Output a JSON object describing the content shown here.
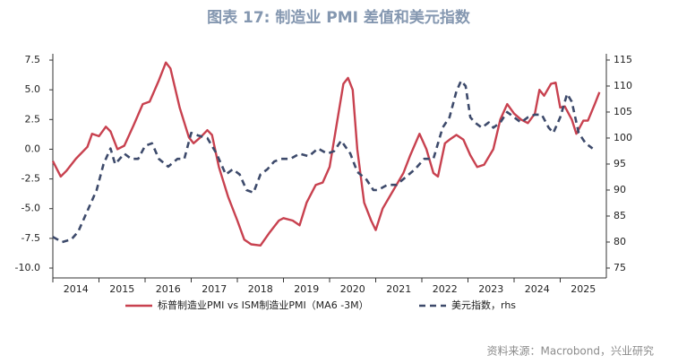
{
  "chart_data": {
    "type": "line",
    "title": "图表 17: 制造业 PMI 差值和美元指数",
    "source": "资料来源：Macrobond，兴业研究",
    "xlim": [
      2014,
      2026
    ],
    "xticks": [
      2014,
      2015,
      2016,
      2017,
      2018,
      2019,
      2020,
      2021,
      2022,
      2023,
      2024,
      2025
    ],
    "ylim": [
      -10.83,
      8.03
    ],
    "yticks": [
      {
        "value": 7.5,
        "label": "7.5"
      },
      {
        "value": 5,
        "label": "5.0"
      },
      {
        "value": 2.5,
        "label": "2.5"
      },
      {
        "value": 0,
        "label": "0.0"
      },
      {
        "value": -2.5,
        "label": "-2.5"
      },
      {
        "value": -5,
        "label": "-5.0"
      },
      {
        "value": -7.5,
        "label": "-7.5"
      },
      {
        "value": -10,
        "label": "-10.0"
      }
    ],
    "y2lim": [
      73.1,
      116.2
    ],
    "y2ticks": [
      75,
      80,
      85,
      90,
      95,
      100,
      105,
      110,
      115
    ],
    "series": [
      {
        "name": "标普制造业PMI vs ISM制造业PMI（MA6 -3M）",
        "color": "#c8414f",
        "dash": false,
        "x": [
          2014.0,
          2014.17,
          2014.3,
          2014.5,
          2014.75,
          2014.85,
          2015.0,
          2015.15,
          2015.25,
          2015.4,
          2015.55,
          2015.75,
          2015.95,
          2016.1,
          2016.3,
          2016.45,
          2016.55,
          2016.75,
          2016.95,
          2017.05,
          2017.2,
          2017.35,
          2017.45,
          2017.6,
          2017.8,
          2018.0,
          2018.15,
          2018.3,
          2018.5,
          2018.7,
          2018.9,
          2019.0,
          2019.2,
          2019.35,
          2019.5,
          2019.7,
          2019.85,
          2020.0,
          2020.15,
          2020.3,
          2020.4,
          2020.5,
          2020.6,
          2020.75,
          2020.9,
          2021.0,
          2021.15,
          2021.3,
          2021.45,
          2021.6,
          2021.75,
          2021.95,
          2022.1,
          2022.25,
          2022.35,
          2022.5,
          2022.6,
          2022.75,
          2022.9,
          2023.05,
          2023.2,
          2023.35,
          2023.55,
          2023.7,
          2023.85,
          2024.0,
          2024.15,
          2024.3,
          2024.45,
          2024.55,
          2024.65,
          2024.8,
          2024.9,
          2025.0,
          2025.1,
          2025.25,
          2025.35,
          2025.5,
          2025.6,
          2025.75,
          2025.85
        ],
        "values": [
          -1.0,
          -2.3,
          -1.8,
          -0.8,
          0.2,
          1.3,
          1.1,
          1.9,
          1.5,
          0.0,
          0.3,
          2.0,
          3.8,
          4.0,
          5.8,
          7.3,
          6.8,
          3.5,
          1.0,
          0.5,
          1.0,
          1.6,
          1.2,
          -1.5,
          -4.0,
          -6.0,
          -7.6,
          -8.0,
          -8.1,
          -7.0,
          -6.0,
          -5.8,
          -6.0,
          -6.4,
          -4.5,
          -3.0,
          -2.8,
          -1.5,
          2.0,
          5.5,
          6.0,
          5.0,
          0.0,
          -4.5,
          -6.0,
          -6.8,
          -5.0,
          -4.0,
          -3.0,
          -2.0,
          -0.5,
          1.3,
          0.0,
          -2.0,
          -2.3,
          0.5,
          0.8,
          1.2,
          0.8,
          -0.5,
          -1.5,
          -1.3,
          0.0,
          2.5,
          3.8,
          3.0,
          2.5,
          2.2,
          3.0,
          5.0,
          4.5,
          5.5,
          5.6,
          3.5,
          3.6,
          2.5,
          1.3,
          2.4,
          2.4,
          3.8,
          4.8
        ]
      },
      {
        "name": "美元指数，rhs",
        "color": "#3d4a6b",
        "dash": true,
        "axis": "y2",
        "x": [
          2014.0,
          2014.2,
          2014.4,
          2014.55,
          2014.75,
          2014.95,
          2015.1,
          2015.25,
          2015.35,
          2015.55,
          2015.7,
          2015.85,
          2016.0,
          2016.15,
          2016.3,
          2016.5,
          2016.7,
          2016.85,
          2017.0,
          2017.15,
          2017.35,
          2017.55,
          2017.75,
          2017.9,
          2018.05,
          2018.2,
          2018.35,
          2018.5,
          2018.65,
          2018.8,
          2018.95,
          2019.15,
          2019.35,
          2019.55,
          2019.75,
          2019.95,
          2020.1,
          2020.25,
          2020.45,
          2020.6,
          2020.8,
          2020.95,
          2021.05,
          2021.25,
          2021.45,
          2021.65,
          2021.85,
          2022.05,
          2022.25,
          2022.45,
          2022.6,
          2022.75,
          2022.85,
          2022.95,
          2023.05,
          2023.15,
          2023.3,
          2023.45,
          2023.55,
          2023.7,
          2023.85,
          2024.0,
          2024.15,
          2024.3,
          2024.45,
          2024.6,
          2024.75,
          2024.85,
          2025.0,
          2025.15,
          2025.25,
          2025.4,
          2025.55,
          2025.7
        ],
        "values": [
          81,
          80,
          80.5,
          82,
          86,
          90,
          95,
          98,
          95,
          97,
          96,
          96,
          98.5,
          99,
          96,
          94.5,
          96,
          96,
          101,
          100.5,
          100,
          97,
          93,
          94,
          93,
          90,
          89.5,
          93,
          94,
          95.5,
          96,
          96,
          97,
          96.5,
          98,
          97,
          97.5,
          99.5,
          97,
          93.5,
          92,
          90,
          90,
          91,
          91,
          92.5,
          94,
          96,
          96,
          102,
          104,
          109,
          111,
          110,
          104,
          103,
          102,
          103,
          102,
          103,
          105,
          104,
          103,
          104,
          104.5,
          104.5,
          102,
          101,
          104,
          108.5,
          107,
          101,
          99,
          98
        ]
      }
    ]
  }
}
